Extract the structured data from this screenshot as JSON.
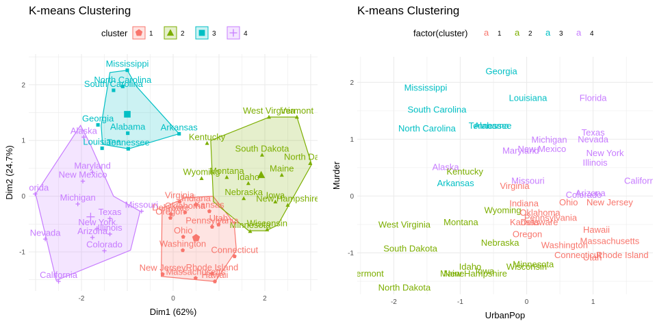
{
  "colors": {
    "c1": "#F8766D",
    "c2": "#7CAE00",
    "c3": "#00BFC4",
    "c4": "#C77CFF"
  },
  "chart_data": [
    {
      "type": "scatter",
      "title": "K-means Clustering",
      "xlabel": "Dim1 (62%)",
      "ylabel": "Dim2 (24.7%)",
      "xlim": [
        -3.15,
        3.15
      ],
      "ylim": [
        -1.7,
        2.55
      ],
      "xticks": [
        -2,
        0,
        2
      ],
      "yticks": [
        -1,
        0,
        1,
        2
      ],
      "legend": {
        "title": "cluster",
        "placement": "top",
        "entries": [
          "1",
          "2",
          "3",
          "4"
        ]
      },
      "centers": [
        {
          "cluster": "1",
          "x": 0.5,
          "y": -0.75
        },
        {
          "cluster": "2",
          "x": 1.92,
          "y": 0.38
        },
        {
          "cluster": "3",
          "x": -1.0,
          "y": 1.47
        },
        {
          "cluster": "4",
          "x": -1.8,
          "y": -0.37
        }
      ],
      "hulls": {
        "1": [
          [
            0.25,
            -0.03
          ],
          [
            0.87,
            0.0
          ],
          [
            1.33,
            -0.48
          ],
          [
            1.38,
            -0.97
          ],
          [
            0.92,
            -1.53
          ],
          [
            -0.26,
            -1.44
          ],
          [
            -0.24,
            -0.22
          ]
        ],
        "2": [
          [
            0.82,
            1.0
          ],
          [
            2.1,
            1.42
          ],
          [
            2.7,
            1.42
          ],
          [
            3.02,
            0.57
          ],
          [
            2.28,
            -0.52
          ],
          [
            2.02,
            -0.62
          ],
          [
            1.65,
            -0.62
          ],
          [
            0.88,
            -0.1
          ]
        ],
        "3": [
          [
            -0.8,
            1.97
          ],
          [
            -1.0,
            2.26
          ],
          [
            -1.38,
            2.22
          ],
          [
            -1.57,
            1.27
          ],
          [
            -1.54,
            0.93
          ],
          [
            -0.97,
            0.85
          ],
          [
            0.13,
            1.12
          ]
        ],
        "4": [
          [
            -2.02,
            1.27
          ],
          [
            -3.0,
            0.04
          ],
          [
            -2.55,
            -1.51
          ],
          [
            -0.93,
            -0.97
          ],
          [
            -0.72,
            -0.27
          ],
          [
            -1.3,
            0.0
          ],
          [
            -1.8,
            0.92
          ]
        ]
      },
      "points": [
        {
          "label": "Alabama",
          "cluster": "3",
          "x": -0.99,
          "y": 1.13
        },
        {
          "label": "Alaska",
          "cluster": "4",
          "x": -1.95,
          "y": 1.06
        },
        {
          "label": "Arizona",
          "cluster": "4",
          "x": -1.76,
          "y": -0.74
        },
        {
          "label": "Arkansas",
          "cluster": "3",
          "x": 0.13,
          "y": 1.12
        },
        {
          "label": "California",
          "cluster": "4",
          "x": -2.5,
          "y": -1.53
        },
        {
          "label": "Colorado",
          "cluster": "4",
          "x": -1.5,
          "y": -0.98
        },
        {
          "label": "Connecticut",
          "cluster": "1",
          "x": 1.34,
          "y": -1.08
        },
        {
          "label": "Delaware",
          "cluster": "1",
          "x": -0.05,
          "y": -0.32
        },
        {
          "label": "Florida",
          "cluster": "4",
          "x": -3.01,
          "y": 0.04
        },
        {
          "label": "Georgia",
          "cluster": "3",
          "x": -1.64,
          "y": 1.28
        },
        {
          "label": "Hawaii",
          "cluster": "1",
          "x": 0.91,
          "y": -1.53
        },
        {
          "label": "Idaho",
          "cluster": "2",
          "x": 1.64,
          "y": 0.23
        },
        {
          "label": "Illinois",
          "cluster": "4",
          "x": -1.38,
          "y": -0.68
        },
        {
          "label": "Indiana",
          "cluster": "1",
          "x": 0.5,
          "y": -0.15
        },
        {
          "label": "Iowa",
          "cluster": "2",
          "x": 2.23,
          "y": -0.1
        },
        {
          "label": "Kansas",
          "cluster": "1",
          "x": 0.79,
          "y": -0.27
        },
        {
          "label": "Kentucky",
          "cluster": "2",
          "x": 0.74,
          "y": 0.95
        },
        {
          "label": "Louisiana",
          "cluster": "3",
          "x": -1.55,
          "y": 0.86
        },
        {
          "label": "Maine",
          "cluster": "2",
          "x": 2.37,
          "y": 0.38
        },
        {
          "label": "Maryland",
          "cluster": "4",
          "x": -1.76,
          "y": 0.43
        },
        {
          "label": "Massachusetts",
          "cluster": "1",
          "x": 0.49,
          "y": -1.47
        },
        {
          "label": "Michigan",
          "cluster": "4",
          "x": -2.08,
          "y": -0.14
        },
        {
          "label": "Minnesota",
          "cluster": "2",
          "x": 1.68,
          "y": -0.63
        },
        {
          "label": "Mississippi",
          "cluster": "3",
          "x": -1.0,
          "y": 2.26
        },
        {
          "label": "Missouri",
          "cluster": "4",
          "x": -0.69,
          "y": -0.27
        },
        {
          "label": "Montana",
          "cluster": "2",
          "x": 1.17,
          "y": 0.34
        },
        {
          "label": "Nebraska",
          "cluster": "2",
          "x": 1.54,
          "y": -0.04
        },
        {
          "label": "Nevada",
          "cluster": "4",
          "x": -2.79,
          "y": -0.77
        },
        {
          "label": "New Hampshire",
          "cluster": "2",
          "x": 2.5,
          "y": -0.16
        },
        {
          "label": "New Jersey",
          "cluster": "1",
          "x": -0.23,
          "y": -1.4
        },
        {
          "label": "New Mexico",
          "cluster": "4",
          "x": -1.97,
          "y": 0.27
        },
        {
          "label": "New York",
          "cluster": "4",
          "x": -1.66,
          "y": -0.58
        },
        {
          "label": "North Carolina",
          "cluster": "3",
          "x": -1.1,
          "y": 1.97
        },
        {
          "label": "North Dakota",
          "cluster": "2",
          "x": 2.99,
          "y": 0.59
        },
        {
          "label": "Ohio",
          "cluster": "1",
          "x": 0.22,
          "y": -0.73
        },
        {
          "label": "Oklahoma",
          "cluster": "1",
          "x": 0.26,
          "y": -0.29
        },
        {
          "label": "Oregon",
          "cluster": "1",
          "x": -0.06,
          "y": -0.39
        },
        {
          "label": "Pennsylvania",
          "cluster": "1",
          "x": 0.85,
          "y": -0.55
        },
        {
          "label": "Rhode Island",
          "cluster": "1",
          "x": 0.85,
          "y": -1.39
        },
        {
          "label": "South Carolina",
          "cluster": "3",
          "x": -1.3,
          "y": 1.9
        },
        {
          "label": "South Dakota",
          "cluster": "2",
          "x": 1.94,
          "y": 0.74
        },
        {
          "label": "Tennessee",
          "cluster": "3",
          "x": -0.98,
          "y": 0.85
        },
        {
          "label": "Texas",
          "cluster": "4",
          "x": -1.38,
          "y": -0.4
        },
        {
          "label": "Utah",
          "cluster": "1",
          "x": 0.99,
          "y": -0.51
        },
        {
          "label": "Vermont",
          "cluster": "2",
          "x": 2.7,
          "y": 1.42
        },
        {
          "label": "Virginia",
          "cluster": "1",
          "x": 0.14,
          "y": -0.1
        },
        {
          "label": "Washington",
          "cluster": "1",
          "x": 0.21,
          "y": -0.97
        },
        {
          "label": "West Virginia",
          "cluster": "2",
          "x": 2.09,
          "y": 1.42
        },
        {
          "label": "Wisconsin",
          "cluster": "2",
          "x": 2.05,
          "y": -0.6
        },
        {
          "label": "Wyoming",
          "cluster": "2",
          "x": 0.62,
          "y": 0.32
        }
      ]
    },
    {
      "type": "scatter",
      "title": "K-means Clustering",
      "xlabel": "UrbanPop",
      "ylabel": "Murder",
      "xlim": [
        -2.55,
        1.9
      ],
      "ylim": [
        -1.73,
        2.45
      ],
      "xticks": [
        -2,
        -1,
        0,
        1
      ],
      "yticks": [
        -1,
        0,
        1,
        2
      ],
      "legend": {
        "title": "factor(cluster)",
        "placement": "top",
        "entries": [
          "1",
          "2",
          "3",
          "4"
        ]
      },
      "points": [
        {
          "label": "Georgia",
          "cluster": "3",
          "x": -0.38,
          "y": 2.2
        },
        {
          "label": "Mississippi",
          "cluster": "3",
          "x": -1.52,
          "y": 1.91
        },
        {
          "label": "Louisiana",
          "cluster": "3",
          "x": 0.02,
          "y": 1.73
        },
        {
          "label": "Florida",
          "cluster": "4",
          "x": 1.0,
          "y": 1.73
        },
        {
          "label": "South Carolina",
          "cluster": "3",
          "x": -1.35,
          "y": 1.52
        },
        {
          "label": "North Carolina",
          "cluster": "3",
          "x": -1.5,
          "y": 1.19
        },
        {
          "label": "Alabama",
          "cluster": "3",
          "x": -0.53,
          "y": 1.24
        },
        {
          "label": "Tennessee",
          "cluster": "3",
          "x": -0.55,
          "y": 1.24
        },
        {
          "label": "Texas",
          "cluster": "4",
          "x": 1.0,
          "y": 1.12
        },
        {
          "label": "Michigan",
          "cluster": "4",
          "x": 0.34,
          "y": 0.99
        },
        {
          "label": "Nevada",
          "cluster": "4",
          "x": 1.0,
          "y": 1.0
        },
        {
          "label": "New Mexico",
          "cluster": "4",
          "x": 0.23,
          "y": 0.83
        },
        {
          "label": "Maryland",
          "cluster": "4",
          "x": -0.09,
          "y": 0.8
        },
        {
          "label": "New York",
          "cluster": "4",
          "x": 1.18,
          "y": 0.76
        },
        {
          "label": "Illinois",
          "cluster": "4",
          "x": 1.03,
          "y": 0.59
        },
        {
          "label": "Alaska",
          "cluster": "4",
          "x": -1.22,
          "y": 0.51
        },
        {
          "label": "Kentucky",
          "cluster": "2",
          "x": -0.93,
          "y": 0.43
        },
        {
          "label": "Arkansas",
          "cluster": "3",
          "x": -1.07,
          "y": 0.23
        },
        {
          "label": "Missouri",
          "cluster": "4",
          "x": 0.02,
          "y": 0.27
        },
        {
          "label": "California",
          "cluster": "4",
          "x": 1.75,
          "y": 0.27
        },
        {
          "label": "Virginia",
          "cluster": "1",
          "x": -0.18,
          "y": 0.18
        },
        {
          "label": "Arizona",
          "cluster": "4",
          "x": 0.96,
          "y": 0.05
        },
        {
          "label": "Colorado",
          "cluster": "4",
          "x": 0.86,
          "y": 0.02
        },
        {
          "label": "Ohio",
          "cluster": "1",
          "x": 0.63,
          "y": -0.11
        },
        {
          "label": "New Jersey",
          "cluster": "1",
          "x": 1.25,
          "y": -0.11
        },
        {
          "label": "Indiana",
          "cluster": "1",
          "x": -0.04,
          "y": -0.13
        },
        {
          "label": "Wyoming",
          "cluster": "2",
          "x": -0.36,
          "y": -0.25
        },
        {
          "label": "Oklahoma",
          "cluster": "1",
          "x": 0.2,
          "y": -0.29
        },
        {
          "label": "Pennsylvania",
          "cluster": "1",
          "x": 0.36,
          "y": -0.38
        },
        {
          "label": "Kansas",
          "cluster": "1",
          "x": -0.03,
          "y": -0.46
        },
        {
          "label": "Delaware",
          "cluster": "1",
          "x": 0.19,
          "y": -0.46
        },
        {
          "label": "West Virginia",
          "cluster": "2",
          "x": -1.84,
          "y": -0.5
        },
        {
          "label": "Montana",
          "cluster": "2",
          "x": -0.99,
          "y": -0.46
        },
        {
          "label": "Hawaii",
          "cluster": "1",
          "x": 1.05,
          "y": -0.59
        },
        {
          "label": "Oregon",
          "cluster": "1",
          "x": 0.01,
          "y": -0.67
        },
        {
          "label": "Massachusetts",
          "cluster": "1",
          "x": 1.25,
          "y": -0.79
        },
        {
          "label": "Nebraska",
          "cluster": "2",
          "x": -0.4,
          "y": -0.82
        },
        {
          "label": "Washington",
          "cluster": "1",
          "x": 0.57,
          "y": -0.86
        },
        {
          "label": "South Dakota",
          "cluster": "2",
          "x": -1.75,
          "y": -0.92
        },
        {
          "label": "Connecticut",
          "cluster": "1",
          "x": 0.77,
          "y": -1.04
        },
        {
          "label": "Utah",
          "cluster": "1",
          "x": 0.99,
          "y": -1.08
        },
        {
          "label": "Rhode Island",
          "cluster": "1",
          "x": 1.44,
          "y": -1.04
        },
        {
          "label": "Minnesota",
          "cluster": "2",
          "x": 0.1,
          "y": -1.2
        },
        {
          "label": "Wisconsin",
          "cluster": "2",
          "x": 0.0,
          "y": -1.24
        },
        {
          "label": "Idaho",
          "cluster": "2",
          "x": -0.85,
          "y": -1.24
        },
        {
          "label": "Iowa",
          "cluster": "2",
          "x": -0.63,
          "y": -1.32
        },
        {
          "label": "Maine",
          "cluster": "2",
          "x": -1.12,
          "y": -1.36
        },
        {
          "label": "New Hampshire",
          "cluster": "2",
          "x": -0.77,
          "y": -1.36
        },
        {
          "label": "Vermont",
          "cluster": "2",
          "x": -2.4,
          "y": -1.36
        },
        {
          "label": "North Dakota",
          "cluster": "2",
          "x": -1.84,
          "y": -1.61
        }
      ]
    }
  ]
}
